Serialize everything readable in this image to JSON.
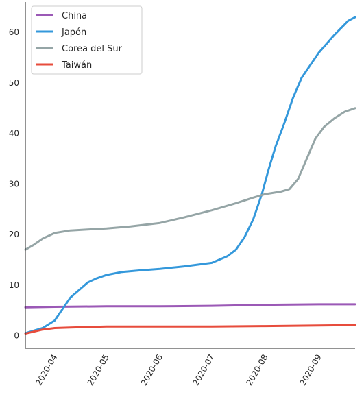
{
  "chart_data": {
    "type": "line",
    "title": "",
    "xlabel": "",
    "ylabel": "",
    "x_axis_type": "date",
    "xlim": [
      "2020-03-15",
      "2020-09-22"
    ],
    "ylim": [
      -2.5,
      66
    ],
    "x_ticks": [
      {
        "date": "2020-04-01",
        "label": "2020-04"
      },
      {
        "date": "2020-05-01",
        "label": "2020-05"
      },
      {
        "date": "2020-06-01",
        "label": "2020-06"
      },
      {
        "date": "2020-07-01",
        "label": "2020-07"
      },
      {
        "date": "2020-08-01",
        "label": "2020-08"
      },
      {
        "date": "2020-09-01",
        "label": "2020-09"
      }
    ],
    "y_ticks": [
      0,
      10,
      20,
      30,
      40,
      50,
      60
    ],
    "grid": false,
    "legend_position": "top-left",
    "series": [
      {
        "name": "China",
        "color": "#9b59b6",
        "points": [
          [
            "2020-03-15",
            5.6
          ],
          [
            "2020-04-01",
            5.7
          ],
          [
            "2020-05-01",
            5.8
          ],
          [
            "2020-06-01",
            5.8
          ],
          [
            "2020-07-01",
            5.9
          ],
          [
            "2020-08-01",
            6.1
          ],
          [
            "2020-09-01",
            6.2
          ],
          [
            "2020-09-22",
            6.2
          ]
        ]
      },
      {
        "name": "Japón",
        "color": "#3498db",
        "points": [
          [
            "2020-03-15",
            0.5
          ],
          [
            "2020-03-20",
            1.0
          ],
          [
            "2020-03-25",
            1.5
          ],
          [
            "2020-04-01",
            3.0
          ],
          [
            "2020-04-05",
            5.0
          ],
          [
            "2020-04-10",
            7.5
          ],
          [
            "2020-04-15",
            9.0
          ],
          [
            "2020-04-20",
            10.5
          ],
          [
            "2020-04-25",
            11.3
          ],
          [
            "2020-05-01",
            12.0
          ],
          [
            "2020-05-10",
            12.6
          ],
          [
            "2020-05-20",
            12.9
          ],
          [
            "2020-06-01",
            13.2
          ],
          [
            "2020-06-15",
            13.7
          ],
          [
            "2020-07-01",
            14.4
          ],
          [
            "2020-07-10",
            15.7
          ],
          [
            "2020-07-15",
            17.0
          ],
          [
            "2020-07-20",
            19.5
          ],
          [
            "2020-07-25",
            23.0
          ],
          [
            "2020-07-30",
            28.0
          ],
          [
            "2020-08-03",
            33.0
          ],
          [
            "2020-08-07",
            37.5
          ],
          [
            "2020-08-12",
            42.0
          ],
          [
            "2020-08-17",
            47.0
          ],
          [
            "2020-08-22",
            51.0
          ],
          [
            "2020-09-01",
            56.0
          ],
          [
            "2020-09-10",
            59.5
          ],
          [
            "2020-09-18",
            62.3
          ],
          [
            "2020-09-22",
            63.0
          ]
        ]
      },
      {
        "name": "Corea del Sur",
        "color": "#95a5a6",
        "points": [
          [
            "2020-03-15",
            17.0
          ],
          [
            "2020-03-20",
            18.0
          ],
          [
            "2020-03-25",
            19.2
          ],
          [
            "2020-04-01",
            20.3
          ],
          [
            "2020-04-10",
            20.8
          ],
          [
            "2020-04-20",
            21.0
          ],
          [
            "2020-05-01",
            21.2
          ],
          [
            "2020-05-15",
            21.6
          ],
          [
            "2020-06-01",
            22.3
          ],
          [
            "2020-06-15",
            23.4
          ],
          [
            "2020-07-01",
            24.8
          ],
          [
            "2020-07-15",
            26.2
          ],
          [
            "2020-07-25",
            27.3
          ],
          [
            "2020-08-01",
            28.0
          ],
          [
            "2020-08-10",
            28.5
          ],
          [
            "2020-08-15",
            29.0
          ],
          [
            "2020-08-20",
            31.0
          ],
          [
            "2020-08-25",
            35.0
          ],
          [
            "2020-08-30",
            39.0
          ],
          [
            "2020-09-04",
            41.3
          ],
          [
            "2020-09-10",
            43.0
          ],
          [
            "2020-09-16",
            44.3
          ],
          [
            "2020-09-22",
            45.0
          ]
        ]
      },
      {
        "name": "Taiwán",
        "color": "#e74c3c",
        "points": [
          [
            "2020-03-15",
            0.4
          ],
          [
            "2020-03-20",
            0.8
          ],
          [
            "2020-03-25",
            1.2
          ],
          [
            "2020-04-01",
            1.5
          ],
          [
            "2020-04-10",
            1.6
          ],
          [
            "2020-04-20",
            1.7
          ],
          [
            "2020-05-01",
            1.8
          ],
          [
            "2020-06-01",
            1.8
          ],
          [
            "2020-07-01",
            1.8
          ],
          [
            "2020-08-01",
            1.9
          ],
          [
            "2020-09-01",
            2.0
          ],
          [
            "2020-09-22",
            2.1
          ]
        ]
      }
    ]
  }
}
